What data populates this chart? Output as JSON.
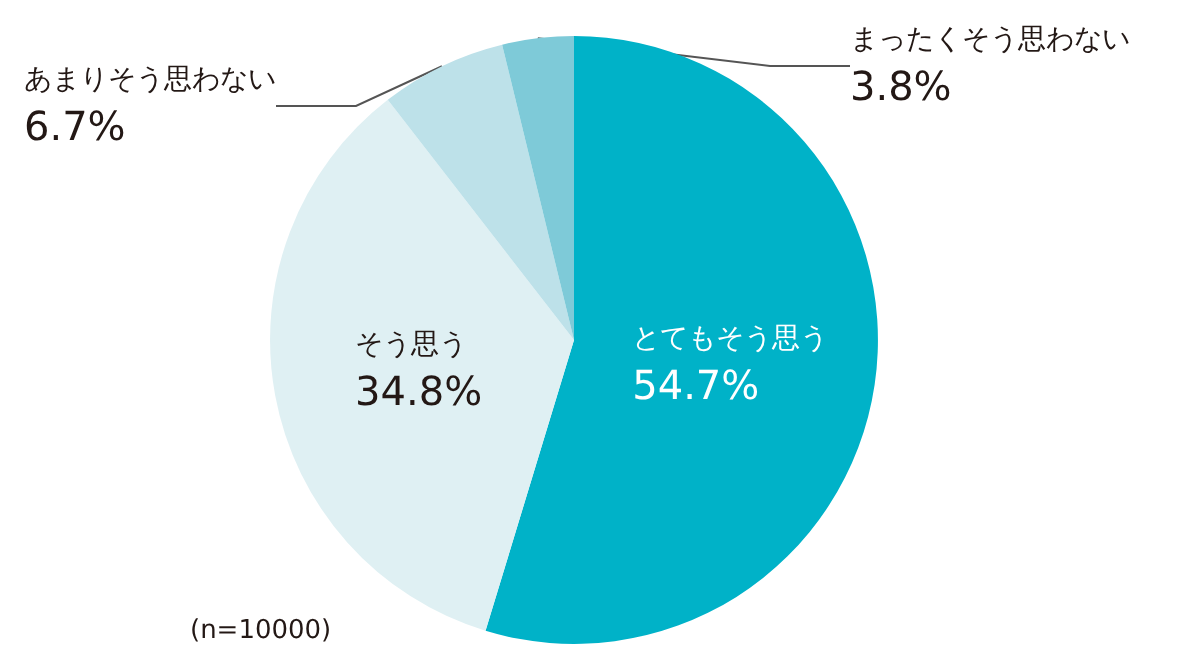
{
  "chart_data": {
    "type": "pie",
    "categories": [
      "とてもそう思う",
      "そう思う",
      "あまりそう思わない",
      "まったくそう思わない"
    ],
    "values": [
      54.7,
      34.8,
      6.7,
      3.8
    ],
    "value_labels": [
      "54.7%",
      "34.8%",
      "6.7%",
      "3.8%"
    ],
    "colors": [
      "#00b2c8",
      "#dff0f3",
      "#bde1e9",
      "#7ecad8"
    ],
    "legend": false,
    "annotations": [
      "(n=10000)"
    ]
  }
}
